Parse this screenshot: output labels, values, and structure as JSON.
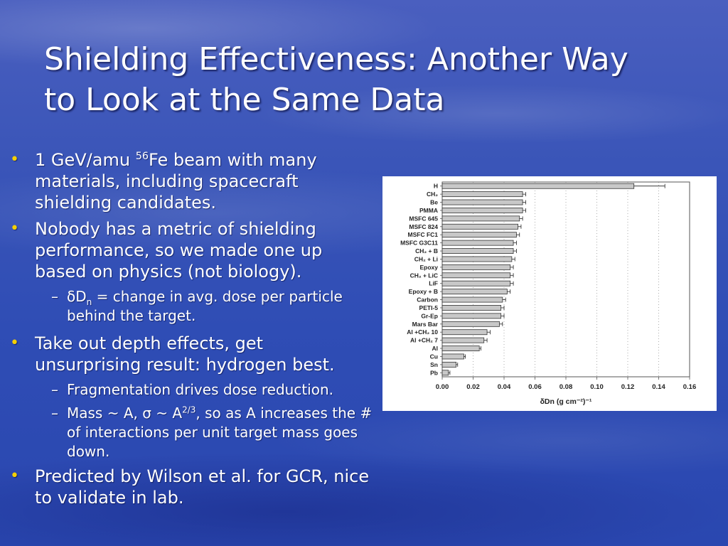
{
  "slide": {
    "title_line1": "Shielding Effectiveness: Another Way",
    "title_line2": "to Look at the Same Data",
    "b1_pre": "1 GeV/amu ",
    "b1_sup": "56",
    "b1_post": "Fe beam with many materials, including spacecraft shielding candidates.",
    "b2": "Nobody has a metric of shielding performance, so we made one up based on physics (not biology).",
    "b2_sub1_sym": "δD",
    "b2_sub1_subscript": "n",
    "b2_sub1_text": " = change in avg. dose per particle behind the target.",
    "b3": "Take out depth effects, get unsurprising result: hydrogen best.",
    "b3_sub1": "Fragmentation drives dose reduction.",
    "b3_sub2_a": "Mass ~ A, ",
    "b3_sub2_sigma": "σ",
    "b3_sub2_b": " ~ A",
    "b3_sub2_sup": "2/3",
    "b3_sub2_c": ", so as A increases the # of interactions per unit target mass goes down.",
    "b4": "Predicted by Wilson et al. for GCR, nice to validate in lab.",
    "bullet_color": "#f5d000"
  },
  "chart_data": {
    "type": "bar",
    "orientation": "horizontal",
    "xlabel": "δDn  (g cm⁻²)⁻¹",
    "xlim": [
      0.0,
      0.16
    ],
    "xticks": [
      "0.00",
      "0.02",
      "0.04",
      "0.06",
      "0.08",
      "0.10",
      "0.12",
      "0.14",
      "0.16"
    ],
    "grid": "vertical dotted",
    "categories": [
      "H",
      "CH₂",
      "Be",
      "PMMA",
      "MSFC 645",
      "MSFC 824",
      "MSFC FC1",
      "MSFC G3C11",
      "CH₂ + B",
      "CH₂ + Li",
      "Epoxy",
      "CH₂ + LiC",
      "LiF",
      "Epoxy + B",
      "Carbon",
      "PETI-5",
      "Gr-Ep",
      "Mars Bar",
      "Al +CH₂ 10",
      "Al +CH₂ 7",
      "Al",
      "Cu",
      "Sn",
      "Pb"
    ],
    "values": [
      0.124,
      0.052,
      0.052,
      0.052,
      0.05,
      0.049,
      0.048,
      0.046,
      0.046,
      0.045,
      0.044,
      0.044,
      0.044,
      0.042,
      0.039,
      0.038,
      0.038,
      0.037,
      0.029,
      0.027,
      0.024,
      0.014,
      0.009,
      0.004
    ],
    "errors": [
      0.02,
      0.002,
      0.002,
      0.002,
      0.002,
      0.002,
      0.002,
      0.002,
      0.002,
      0.002,
      0.002,
      0.002,
      0.002,
      0.002,
      0.002,
      0.002,
      0.002,
      0.002,
      0.002,
      0.002,
      0.001,
      0.001,
      0.001,
      0.001
    ],
    "bar_color": "#c8c8c8"
  }
}
